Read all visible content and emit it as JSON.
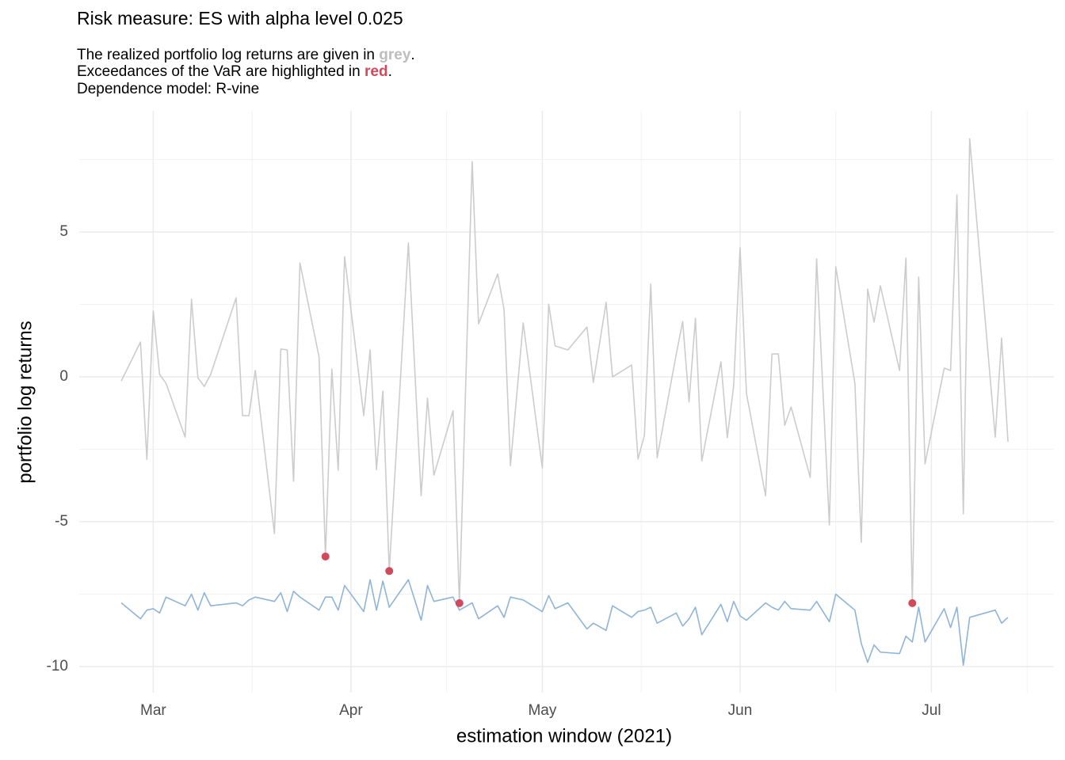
{
  "chart_data": {
    "type": "line",
    "title": "Risk measure: ES with alpha level 0.025",
    "subtitle": [
      [
        "The realized portfolio log returns are given in ",
        "grey",
        "."
      ],
      [
        "Exceedances of the VaR are highlighted in ",
        "red",
        "."
      ],
      [
        "Dependence model: R-vine"
      ]
    ],
    "x_label": "estimation window (2021)",
    "y_label": "portfolio log returns",
    "x": [
      55,
      58,
      59,
      60,
      61,
      62,
      65,
      66,
      67,
      68,
      69,
      73,
      74,
      75,
      76,
      79,
      80,
      81,
      82,
      83,
      86,
      87,
      88,
      89,
      90,
      93,
      94,
      95,
      96,
      97,
      100,
      102,
      103,
      104,
      107,
      108,
      110,
      111,
      114,
      115,
      116,
      118,
      121,
      122,
      123,
      125,
      128,
      129,
      131,
      132,
      135,
      136,
      137,
      138,
      139,
      142,
      143,
      144,
      145,
      146,
      149,
      150,
      151,
      152,
      153,
      156,
      157,
      158,
      159,
      160,
      163,
      164,
      166,
      167,
      170,
      171,
      172,
      173,
      174,
      177,
      178,
      179,
      180,
      181,
      184,
      185,
      186,
      187,
      188,
      192,
      193,
      194
    ],
    "series": [
      {
        "color": "#cccccc",
        "values": [
          -0.14,
          1.2,
          -2.85,
          2.27,
          0.08,
          -0.22,
          -2.08,
          2.68,
          -0.03,
          -0.33,
          0.08,
          2.73,
          -1.34,
          -1.34,
          0.22,
          -5.41,
          0.96,
          0.93,
          -3.6,
          3.93,
          0.68,
          -6.2,
          0.27,
          -3.22,
          4.15,
          -1.34,
          0.93,
          -3.2,
          -0.49,
          -6.7,
          4.62,
          -4.1,
          -0.74,
          -3.39,
          -1.17,
          -7.81,
          7.43,
          1.83,
          3.55,
          2.32,
          -3.06,
          1.86,
          -3.14,
          2.51,
          1.07,
          0.93,
          1.72,
          -0.19,
          2.57,
          0,
          0.41,
          -2.84,
          -2.02,
          3.2,
          -2.79,
          0.79,
          1.91,
          -0.87,
          2.02,
          -2.9,
          0.52,
          -2.1,
          -0.3,
          4.45,
          -0.57,
          -4.1,
          0.79,
          0.79,
          -1.67,
          -1.04,
          -3.47,
          4.07,
          -5.11,
          3.8,
          -0.22,
          -5.71,
          3.03,
          1.89,
          3.14,
          0.22,
          4.1,
          -7.81,
          3.44,
          -3.0,
          0.3,
          0.22,
          6.28,
          -4.73,
          8.22,
          -2.08,
          1.34,
          -2.24
        ]
      },
      {
        "color": "#8fb4d6",
        "values": [
          -7.8,
          -8.35,
          -8.05,
          -8.0,
          -8.15,
          -7.6,
          -7.9,
          -7.5,
          -8.05,
          -7.45,
          -7.9,
          -7.8,
          -7.9,
          -7.7,
          -7.6,
          -7.75,
          -7.45,
          -8.1,
          -7.4,
          -7.6,
          -8.05,
          -7.6,
          -7.6,
          -8.05,
          -7.2,
          -8.1,
          -7.0,
          -8.05,
          -7.05,
          -7.95,
          -7.0,
          -8.4,
          -7.2,
          -7.75,
          -7.6,
          -8.05,
          -7.8,
          -8.35,
          -7.9,
          -8.3,
          -7.6,
          -7.7,
          -8.1,
          -7.55,
          -8.0,
          -7.8,
          -8.7,
          -8.5,
          -8.75,
          -7.9,
          -8.3,
          -8.1,
          -8.05,
          -7.95,
          -8.5,
          -8.15,
          -8.6,
          -8.35,
          -7.95,
          -8.9,
          -7.85,
          -8.45,
          -7.75,
          -8.25,
          -8.4,
          -7.8,
          -7.95,
          -8.05,
          -7.75,
          -8.0,
          -8.05,
          -7.75,
          -8.45,
          -7.5,
          -8.05,
          -9.2,
          -9.85,
          -9.25,
          -9.5,
          -9.55,
          -8.95,
          -9.15,
          -7.95,
          -9.15,
          -8.0,
          -8.65,
          -7.95,
          -9.95,
          -8.3,
          -8.05,
          -8.5,
          -8.3
        ]
      },
      {
        "color": "#d1495b",
        "marker": "point",
        "x": [
          87,
          97,
          108,
          179
        ],
        "values": [
          -6.2,
          -6.7,
          -7.81,
          -7.81
        ]
      }
    ],
    "xlim": [
      48.4,
      201.2
    ],
    "xticks": [
      {
        "value": 60,
        "label": "Mar"
      },
      {
        "value": 91,
        "label": "Apr"
      },
      {
        "value": 121,
        "label": "May"
      },
      {
        "value": 152,
        "label": "Jun"
      },
      {
        "value": 182,
        "label": "Jul"
      }
    ],
    "ylim": [
      -10.9,
      9.18
    ],
    "yticks": [
      -10,
      -5,
      0,
      5
    ],
    "grid": true
  }
}
